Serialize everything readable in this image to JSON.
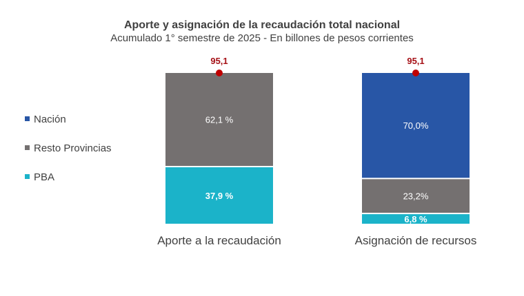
{
  "chart_data": {
    "type": "bar",
    "stacked": true,
    "percent_stacked": true,
    "title": "Aporte y asignación de la recaudación total nacional",
    "subtitle": "Acumulado 1° semestre de 2025 - En billones de pesos corrientes",
    "xlabel": "",
    "ylabel": "",
    "ylim": [
      0,
      100
    ],
    "grid": false,
    "legend_position": "left",
    "categories": [
      "Aporte a la recaudación",
      "Asignación de recursos"
    ],
    "series": [
      {
        "name": "PBA",
        "color": "#1bb3c9",
        "values": [
          37.9,
          6.8
        ],
        "labels": [
          "37,9 %",
          "6,8 %"
        ],
        "label_color": "#ffffff",
        "label_bold": true
      },
      {
        "name": "Resto Provincias",
        "color": "#747070",
        "values": [
          62.1,
          23.2
        ],
        "labels": [
          "62,1 %",
          "23,2%"
        ],
        "label_color": "#ffffff",
        "label_bold": false
      },
      {
        "name": "Nación",
        "color": "#2856a6",
        "values": [
          0,
          70.0
        ],
        "labels": [
          "",
          "70,0%"
        ],
        "label_color": "#ffffff",
        "label_bold": false
      }
    ],
    "totals": {
      "values": [
        95.1,
        95.1
      ],
      "labels": [
        "95,1",
        "95,1"
      ],
      "marker_color": "#c00000"
    },
    "legend": [
      {
        "name": "Nación",
        "color": "#2856a6"
      },
      {
        "name": "Resto Provincias",
        "color": "#747070"
      },
      {
        "name": "PBA",
        "color": "#1bb3c9"
      }
    ]
  }
}
